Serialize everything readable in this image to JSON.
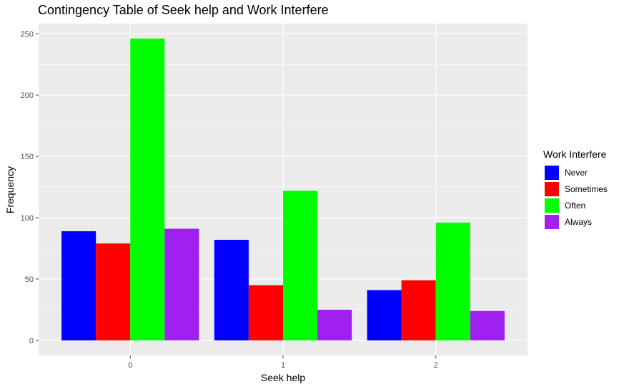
{
  "chart_data": {
    "type": "bar",
    "title": "Contingency Table of Seek help and Work Interfere",
    "xlabel": "Seek help",
    "ylabel": "Frequency",
    "categories": [
      "0",
      "1",
      "2"
    ],
    "series": [
      {
        "name": "Never",
        "color": "#0000FF",
        "values": [
          89,
          82,
          41
        ]
      },
      {
        "name": "Sometimes",
        "color": "#FF0000",
        "values": [
          79,
          45,
          49
        ]
      },
      {
        "name": "Often",
        "color": "#00FF00",
        "values": [
          246,
          122,
          96
        ]
      },
      {
        "name": "Always",
        "color": "#A020F0",
        "values": [
          91,
          25,
          24
        ]
      }
    ],
    "ylim": [
      -12.3,
      258.3
    ],
    "yticks": [
      0,
      50,
      100,
      150,
      200,
      250
    ],
    "grid": true,
    "legend": {
      "title": "Work Interfere",
      "position": "right"
    },
    "panel_background": "#EBEBEB",
    "grid_color": "#FFFFFF"
  }
}
